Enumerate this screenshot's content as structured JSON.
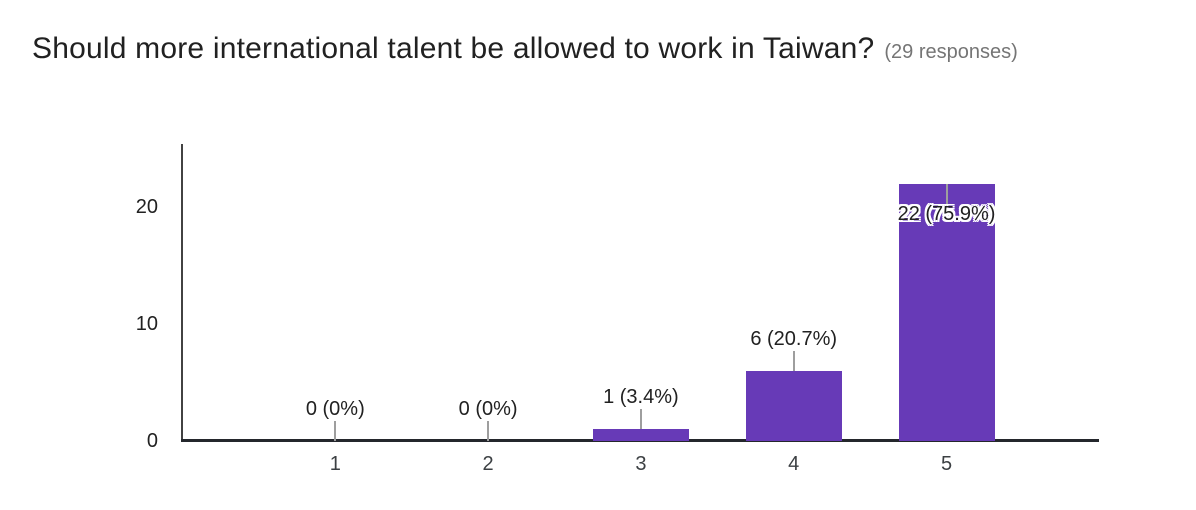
{
  "header": {
    "title": "Should more international talent be allowed to work in Taiwan?",
    "responses_label": "(29 responses)"
  },
  "chart_data": {
    "type": "bar",
    "title": "Should more international talent be allowed to work in Taiwan?",
    "responses_count": 29,
    "categories": [
      "1",
      "2",
      "3",
      "4",
      "5"
    ],
    "values": [
      0,
      0,
      1,
      6,
      22
    ],
    "annotations": [
      "0 (0%)",
      "0 (0%)",
      "1 (3.4%)",
      "6 (20.7%)",
      "22 (75.9%)"
    ],
    "percentages": [
      0,
      0,
      3.4,
      20.7,
      75.9
    ],
    "xlabel": "",
    "ylabel": "",
    "y_ticks": [
      0,
      10,
      20
    ],
    "ylim": [
      0,
      25.4
    ],
    "grid": false,
    "legend": "none",
    "bar_color": "#673ab7"
  }
}
